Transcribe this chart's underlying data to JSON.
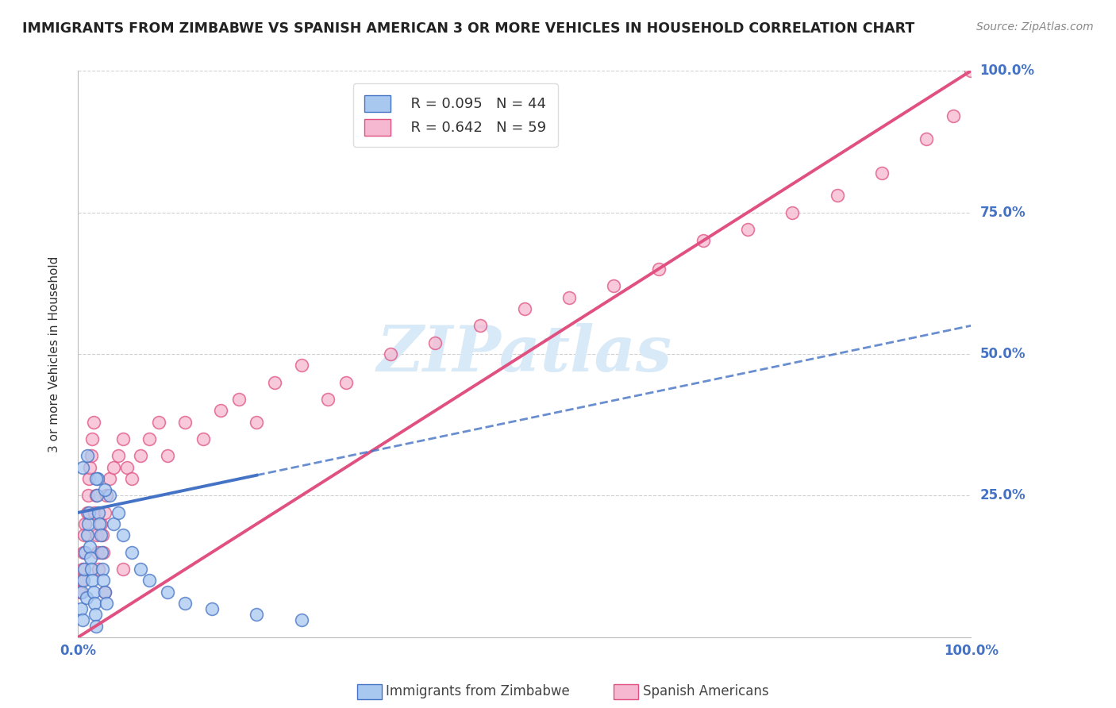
{
  "title": "IMMIGRANTS FROM ZIMBABWE VS SPANISH AMERICAN 3 OR MORE VEHICLES IN HOUSEHOLD CORRELATION CHART",
  "source": "Source: ZipAtlas.com",
  "ylabel": "3 or more Vehicles in Household",
  "xlim": [
    0,
    100
  ],
  "ylim": [
    0,
    100
  ],
  "color_blue": "#A8C8F0",
  "color_pink": "#F5B8D0",
  "color_blue_line": "#4472C4",
  "color_pink_line": "#E05080",
  "color_blue_edge": "#4472C4",
  "color_pink_edge": "#E05080",
  "watermark_color": "#D8EAF8",
  "background_color": "#FFFFFF",
  "grid_color": "#CCCCCC",
  "R_zim": 0.095,
  "N_zim": 44,
  "R_spa": 0.642,
  "N_spa": 59,
  "zimbabwe_x": [
    0.3,
    0.4,
    0.5,
    0.6,
    0.7,
    0.8,
    0.9,
    1.0,
    1.1,
    1.2,
    1.3,
    1.4,
    1.5,
    1.6,
    1.7,
    1.8,
    1.9,
    2.0,
    2.1,
    2.2,
    2.3,
    2.4,
    2.5,
    2.6,
    2.7,
    2.8,
    3.0,
    3.2,
    3.5,
    4.0,
    4.5,
    5.0,
    6.0,
    7.0,
    8.0,
    10.0,
    12.0,
    15.0,
    20.0,
    25.0,
    0.5,
    1.0,
    2.0,
    3.0
  ],
  "zimbabwe_y": [
    5,
    8,
    3,
    10,
    12,
    15,
    7,
    18,
    20,
    22,
    16,
    14,
    12,
    10,
    8,
    6,
    4,
    2,
    25,
    28,
    22,
    20,
    18,
    15,
    12,
    10,
    8,
    6,
    25,
    20,
    22,
    18,
    15,
    12,
    10,
    8,
    6,
    5,
    4,
    3,
    30,
    32,
    28,
    26
  ],
  "spanish_x": [
    0.2,
    0.4,
    0.5,
    0.6,
    0.7,
    0.8,
    1.0,
    1.1,
    1.2,
    1.3,
    1.5,
    1.6,
    1.7,
    1.8,
    2.0,
    2.1,
    2.2,
    2.3,
    2.5,
    2.7,
    2.8,
    3.0,
    3.2,
    3.5,
    4.0,
    4.5,
    5.0,
    5.5,
    6.0,
    7.0,
    8.0,
    9.0,
    10.0,
    12.0,
    14.0,
    16.0,
    18.0,
    20.0,
    22.0,
    25.0,
    28.0,
    30.0,
    35.0,
    40.0,
    45.0,
    50.0,
    55.0,
    60.0,
    65.0,
    70.0,
    75.0,
    80.0,
    85.0,
    90.0,
    95.0,
    98.0,
    100.0,
    3.0,
    5.0
  ],
  "spanish_y": [
    8,
    10,
    12,
    15,
    18,
    20,
    22,
    25,
    28,
    30,
    32,
    35,
    38,
    22,
    25,
    18,
    15,
    12,
    20,
    18,
    15,
    22,
    25,
    28,
    30,
    32,
    35,
    30,
    28,
    32,
    35,
    38,
    32,
    38,
    35,
    40,
    42,
    38,
    45,
    48,
    42,
    45,
    50,
    52,
    55,
    58,
    60,
    62,
    65,
    70,
    72,
    75,
    78,
    82,
    88,
    92,
    100,
    8,
    12
  ]
}
